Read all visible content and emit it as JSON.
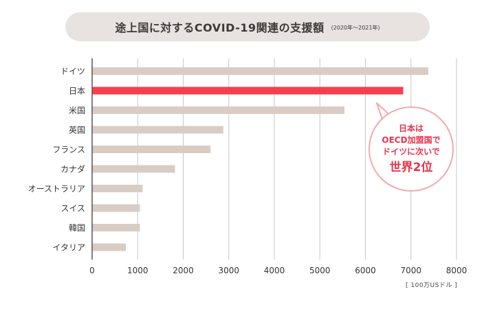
{
  "title": {
    "main": "途上国に対するCOVID-19関連の支援額",
    "sub": "(2020年～2021年)"
  },
  "callout": {
    "line1": "日本は",
    "line2": "OECD加盟国で",
    "line3": "ドイツに次いで",
    "line4": "世界2位"
  },
  "unit_label": "[ 100万USドル ]",
  "colors": {
    "bar": "#d9ccc3",
    "highlight": "#f43f4f",
    "grid": "#c9c5c5",
    "axis": "#555555"
  },
  "chart_data": {
    "type": "bar",
    "orientation": "horizontal",
    "title": "途上国に対するCOVID-19関連の支援額",
    "subtitle": "(2020年～2021年)",
    "xlabel": "[ 100万USドル ]",
    "ylabel": "",
    "xlim": [
      0,
      8000
    ],
    "xticks": [
      0,
      1000,
      2000,
      3000,
      4000,
      5000,
      6000,
      7000,
      8000
    ],
    "grid": true,
    "categories": [
      "ドイツ",
      "日本",
      "米国",
      "英国",
      "フランス",
      "カナダ",
      "オーストラリア",
      "スイス",
      "韓国",
      "イタリア"
    ],
    "values": [
      7380,
      6830,
      5540,
      2880,
      2600,
      1820,
      1110,
      1050,
      1050,
      740
    ],
    "highlight": "日本"
  }
}
